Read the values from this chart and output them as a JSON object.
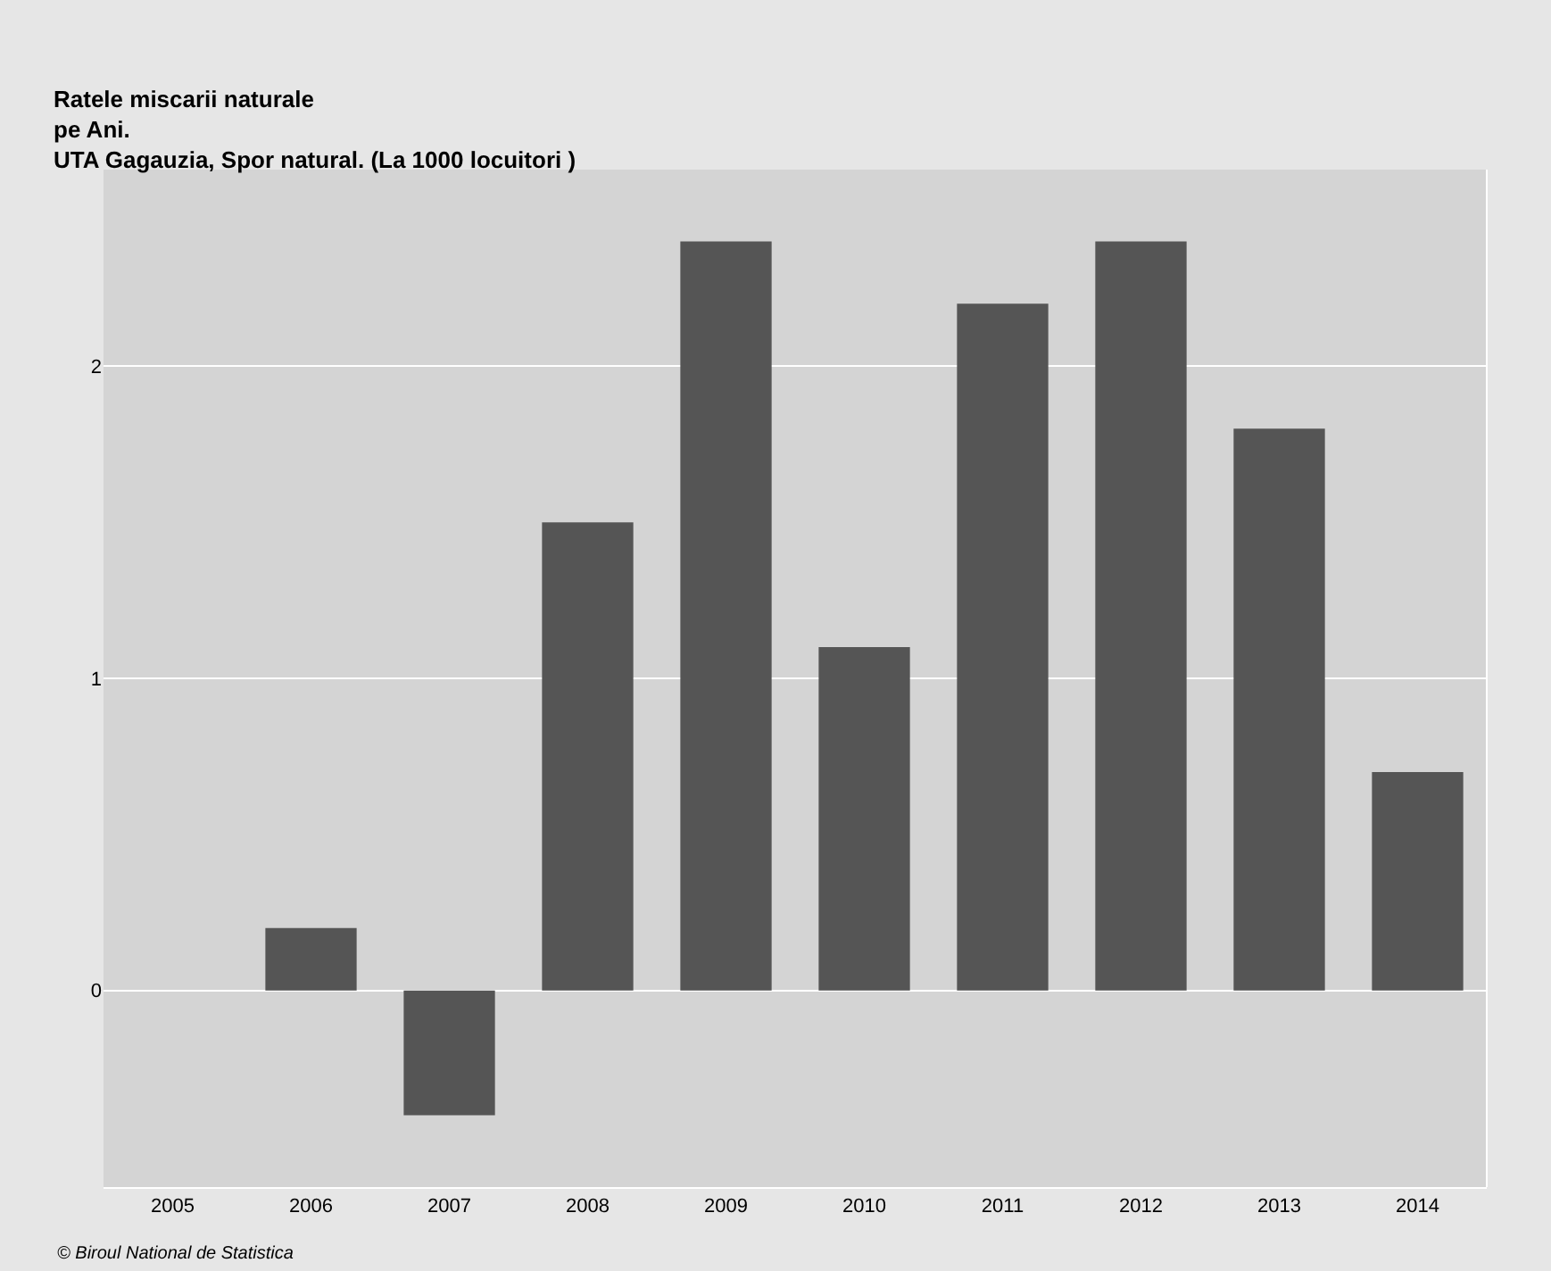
{
  "chart_data": {
    "type": "bar",
    "title": "Ratele miscarii naturale\npe Ani.\nUTA Gagauzia, Spor natural. (La 1000 locuitori )",
    "categories": [
      "2005",
      "2006",
      "2007",
      "2008",
      "2009",
      "2010",
      "2011",
      "2012",
      "2013",
      "2014"
    ],
    "values": [
      0,
      0.2,
      -0.4,
      1.5,
      2.4,
      1.1,
      2.2,
      2.4,
      1.8,
      0.7
    ],
    "color": "#555555",
    "ylim": [
      -0.63,
      2.63
    ],
    "yticks": [
      0,
      1,
      2
    ],
    "grid": "y",
    "annotations": [
      "© Biroul National de Statistica"
    ]
  }
}
